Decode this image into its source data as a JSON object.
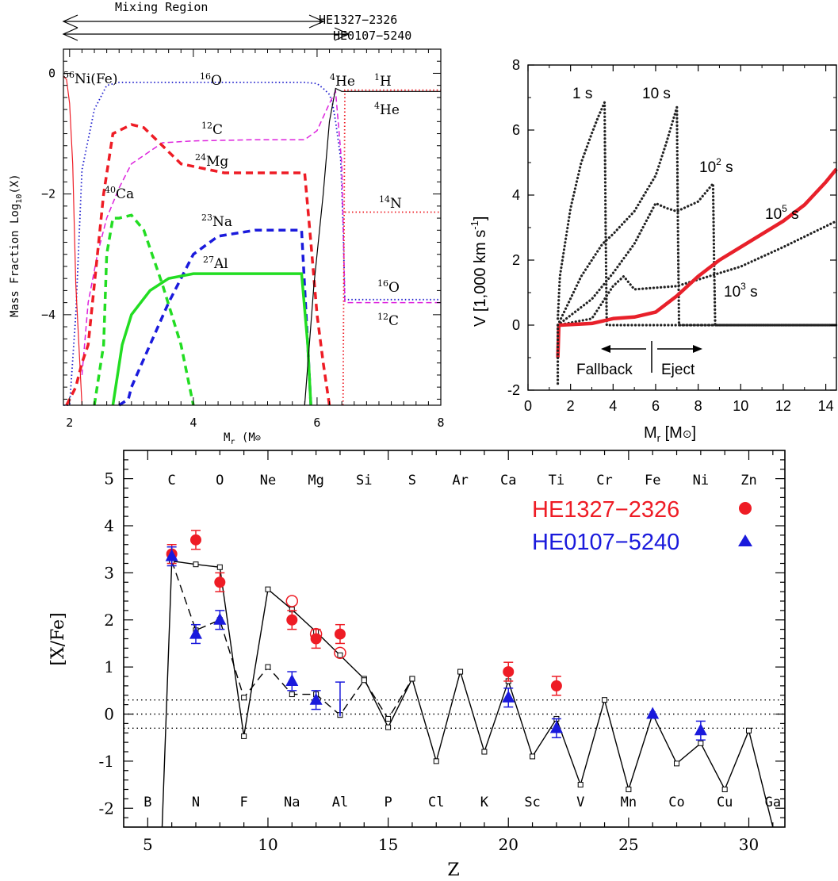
{
  "panel_a": {
    "mixing_label": "Mixing Region",
    "star1_label": "HE1327−2326",
    "star2_label": "HE0107−5240",
    "xlabel": "M",
    "xlabel_sub": "r",
    "xlabel_unit": " (M",
    "xlabel_unit_end": ")",
    "ylabel": "Mass Fraction Log",
    "ylabel_sub": "10",
    "ylabel_end": "(X)",
    "xticks": [
      "2",
      "4",
      "6",
      "8"
    ],
    "yticks": [
      "0",
      "−2",
      "−4"
    ],
    "species": [
      {
        "sup": "56",
        "name": "Ni(Fe)"
      },
      {
        "sup": "16",
        "name": "O"
      },
      {
        "sup": "4",
        "name": "He"
      },
      {
        "sup": "1",
        "name": "H"
      },
      {
        "sup": "4",
        "name": "He"
      },
      {
        "sup": "12",
        "name": "C"
      },
      {
        "sup": "24",
        "name": "Mg"
      },
      {
        "sup": "40",
        "name": "Ca"
      },
      {
        "sup": "14",
        "name": "N"
      },
      {
        "sup": "23",
        "name": "Na"
      },
      {
        "sup": "27",
        "name": "Al"
      },
      {
        "sup": "16",
        "name": "O"
      },
      {
        "sup": "12",
        "name": "C"
      }
    ]
  },
  "panel_b": {
    "ylabel": "V [1,000 km s",
    "ylabel_sup": "-1",
    "ylabel_end": "]",
    "xlabel": "M",
    "xlabel_sub": "r",
    "xlabel_end": " [M",
    "xlabel_close": "]",
    "xticks": [
      "0",
      "2",
      "4",
      "6",
      "8",
      "10",
      "12",
      "14"
    ],
    "yticks": [
      "-2",
      "0",
      "2",
      "4",
      "6",
      "8"
    ],
    "time_labels": {
      "t1": "1 s",
      "t10": "10 s",
      "t100_base": "10",
      "t100_sup": "2",
      "t100_unit": " s",
      "t1000_base": "10",
      "t1000_sup": "3",
      "t1000_unit": " s",
      "t1e5_base": "10",
      "t1e5_sup": "5",
      "t1e5_unit": " s"
    },
    "fallback_label": "Fallback",
    "eject_label": "Eject"
  },
  "panel_c": {
    "xlabel": "Z",
    "ylabel": "[X/Fe]",
    "legend": [
      {
        "name": "HE1327−2326",
        "color": "#ee1c25",
        "marker": "circle"
      },
      {
        "name": "HE0107−5240",
        "color": "#1a1adc",
        "marker": "triangle"
      }
    ]
  },
  "chart_data": [
    {
      "type": "line",
      "panel": "a",
      "xlabel": "Mr (M☉)",
      "ylabel": "Mass Fraction Log10(X)",
      "xlim": [
        1.9,
        8
      ],
      "ylim": [
        -5.5,
        0.4
      ],
      "series": [
        {
          "name": "16O",
          "color": "#1a1acc",
          "style": "dotted",
          "x": [
            1.9,
            2.0,
            2.1,
            2.2,
            2.4,
            2.6,
            2.8,
            3.0,
            4.0,
            5.0,
            5.8,
            6.0,
            6.1,
            6.2,
            6.25,
            6.3,
            6.38,
            6.42,
            6.45,
            8
          ],
          "y": [
            -5.5,
            -5.5,
            -4.0,
            -1.6,
            -0.6,
            -0.2,
            -0.15,
            -0.15,
            -0.15,
            -0.15,
            -0.15,
            -0.17,
            -0.25,
            -0.35,
            -0.5,
            -0.8,
            -1.4,
            -2.5,
            -3.75,
            -3.75
          ]
        },
        {
          "name": "12C",
          "color": "#dd22dd",
          "style": "dashed",
          "x": [
            2.2,
            2.3,
            2.45,
            2.6,
            2.8,
            3.0,
            3.5,
            4.0,
            5.0,
            5.8,
            6.0,
            6.2,
            6.3,
            6.4,
            6.45,
            8
          ],
          "y": [
            -5.0,
            -3.8,
            -3.0,
            -2.4,
            -1.9,
            -1.5,
            -1.15,
            -1.12,
            -1.1,
            -1.1,
            -0.95,
            -0.5,
            -0.3,
            -1.5,
            -3.8,
            -3.8
          ]
        },
        {
          "name": "24Mg",
          "color": "#ee1c25",
          "style": "dashed-thick",
          "x": [
            1.95,
            2.1,
            2.2,
            2.3,
            2.4,
            2.55,
            2.7,
            3.0,
            3.2,
            3.5,
            3.8,
            4.5,
            5.8,
            5.9,
            6.0,
            6.1,
            6.2
          ],
          "y": [
            -5.5,
            -5.2,
            -4.8,
            -4.5,
            -3.5,
            -2.0,
            -1.0,
            -0.85,
            -0.9,
            -1.2,
            -1.5,
            -1.65,
            -1.65,
            -2.8,
            -4.0,
            -4.8,
            -5.5
          ]
        },
        {
          "name": "23Na",
          "color": "#1a1adc",
          "style": "dashed-thick",
          "x": [
            2.8,
            2.95,
            3.0,
            3.3,
            3.6,
            4.0,
            4.4,
            5.0,
            5.75,
            5.85,
            5.9
          ],
          "y": [
            -5.5,
            -5.4,
            -5.2,
            -4.5,
            -3.8,
            -3.0,
            -2.7,
            -2.6,
            -2.6,
            -4.5,
            -5.5
          ]
        },
        {
          "name": "27Al",
          "color": "#22dd22",
          "style": "solid-thick",
          "x": [
            2.7,
            2.85,
            3.0,
            3.3,
            3.6,
            4.0,
            5.0,
            5.75,
            5.85,
            5.9
          ],
          "y": [
            -5.5,
            -4.5,
            -4.0,
            -3.6,
            -3.4,
            -3.32,
            -3.32,
            -3.32,
            -4.5,
            -5.5
          ]
        },
        {
          "name": "40Ca",
          "color": "#22dd22",
          "style": "dashed-thick",
          "x": [
            2.4,
            2.55,
            2.6,
            2.7,
            2.8,
            3.0,
            3.2,
            3.5,
            3.8,
            4.0
          ],
          "y": [
            -5.5,
            -4.5,
            -3.0,
            -2.4,
            -2.4,
            -2.35,
            -2.6,
            -3.5,
            -4.5,
            -5.5
          ]
        },
        {
          "name": "4He",
          "color": "#000000",
          "style": "solid",
          "x": [
            5.8,
            5.95,
            6.1,
            6.2,
            6.3,
            6.4,
            8
          ],
          "y": [
            -5.5,
            -3.5,
            -2.0,
            -0.8,
            -0.25,
            -0.3,
            -0.3
          ]
        },
        {
          "name": "1H",
          "color": "#ee1c25",
          "style": "dotted",
          "x": [
            6.42,
            6.45,
            8
          ],
          "y": [
            -5.5,
            -0.28,
            -0.28
          ]
        },
        {
          "name": "14N",
          "color": "#ee1c25",
          "style": "dotted",
          "x": [
            6.45,
            8
          ],
          "y": [
            -2.3,
            -2.3
          ]
        },
        {
          "name": "56Ni(Fe)",
          "color": "#ee1c25",
          "style": "solid",
          "x": [
            1.9,
            1.95,
            2.0,
            2.05,
            2.1,
            2.2
          ],
          "y": [
            -0.05,
            -0.1,
            -0.5,
            -1.5,
            -3.5,
            -5.5
          ]
        }
      ]
    },
    {
      "type": "line",
      "panel": "b",
      "xlabel": "Mr [M☉]",
      "ylabel": "V [1,000 km s-1]",
      "xlim": [
        0,
        14.5
      ],
      "ylim": [
        -2,
        8
      ],
      "series": [
        {
          "name": "1 s",
          "style": "dotted",
          "x": [
            1.4,
            1.5,
            2.0,
            2.5,
            3.0,
            3.3,
            3.6,
            3.65,
            3.7,
            5,
            14.5
          ],
          "y": [
            0.2,
            1.5,
            3.6,
            5.0,
            5.9,
            6.4,
            6.85,
            3.0,
            0.0,
            0.0,
            0.0
          ]
        },
        {
          "name": "10 s",
          "style": "dotted",
          "x": [
            1.4,
            2.5,
            3.5,
            4.0,
            5.0,
            6.0,
            6.5,
            7.0,
            7.05,
            7.1,
            14.5
          ],
          "y": [
            0.0,
            1.5,
            2.5,
            2.8,
            3.5,
            4.6,
            5.6,
            6.7,
            3.0,
            0.0,
            0.0
          ]
        },
        {
          "name": "100 s",
          "style": "dotted",
          "x": [
            1.4,
            3.0,
            4.0,
            5.0,
            6.0,
            6.5,
            7.0,
            8.0,
            8.7,
            8.75,
            8.8,
            14.5
          ],
          "y": [
            0.0,
            0.8,
            1.6,
            2.5,
            3.75,
            3.6,
            3.5,
            3.8,
            4.35,
            2.0,
            0.0,
            0.0
          ]
        },
        {
          "name": "1000 s",
          "style": "dotted",
          "x": [
            1.4,
            3.0,
            4.0,
            4.5,
            5.0,
            7.0,
            8.0,
            9.0,
            10.0,
            12.0,
            14.5
          ],
          "y": [
            0.0,
            0.2,
            1.2,
            1.5,
            1.1,
            1.2,
            1.4,
            1.6,
            1.8,
            2.4,
            3.2
          ]
        },
        {
          "name": "100000 s",
          "style": "solid-red",
          "x": [
            1.4,
            1.45,
            1.5,
            3.0,
            4.0,
            5.0,
            6.0,
            7.0,
            8.0,
            9.0,
            10.0,
            11.0,
            12.0,
            13.0,
            14.0,
            14.5
          ],
          "y": [
            -1.0,
            0.0,
            0.0,
            0.05,
            0.2,
            0.25,
            0.4,
            0.9,
            1.5,
            2.0,
            2.4,
            2.8,
            3.2,
            3.7,
            4.4,
            4.8
          ]
        }
      ]
    },
    {
      "type": "scatter",
      "panel": "c",
      "xlabel": "Z",
      "ylabel": "[X/Fe]",
      "xlim": [
        4,
        31.5
      ],
      "ylim": [
        -2.4,
        5.6
      ],
      "xticks": [
        5,
        10,
        15,
        20,
        25,
        30
      ],
      "yticks": [
        -2,
        -1,
        0,
        1,
        2,
        3,
        4,
        5
      ],
      "hlines": [
        0.3,
        0.0,
        -0.3
      ],
      "top_elements": [
        {
          "z": 6,
          "label": "C"
        },
        {
          "z": 8,
          "label": "O"
        },
        {
          "z": 10,
          "label": "Ne"
        },
        {
          "z": 12,
          "label": "Mg"
        },
        {
          "z": 14,
          "label": "Si"
        },
        {
          "z": 16,
          "label": "S"
        },
        {
          "z": 18,
          "label": "Ar"
        },
        {
          "z": 20,
          "label": "Ca"
        },
        {
          "z": 22,
          "label": "Ti"
        },
        {
          "z": 24,
          "label": "Cr"
        },
        {
          "z": 26,
          "label": "Fe"
        },
        {
          "z": 28,
          "label": "Ni"
        },
        {
          "z": 30,
          "label": "Zn"
        }
      ],
      "bottom_elements": [
        {
          "z": 5,
          "label": "B"
        },
        {
          "z": 7,
          "label": "N"
        },
        {
          "z": 9,
          "label": "F"
        },
        {
          "z": 11,
          "label": "Na"
        },
        {
          "z": 13,
          "label": "Al"
        },
        {
          "z": 15,
          "label": "P"
        },
        {
          "z": 17,
          "label": "Cl"
        },
        {
          "z": 19,
          "label": "K"
        },
        {
          "z": 21,
          "label": "Sc"
        },
        {
          "z": 23,
          "label": "V"
        },
        {
          "z": 25,
          "label": "Mn"
        },
        {
          "z": 27,
          "label": "Co"
        },
        {
          "z": 29,
          "label": "Cu"
        },
        {
          "z": 31,
          "label": "Ga"
        }
      ],
      "model_solid": {
        "x": [
          5.6,
          6,
          7,
          8,
          9,
          10,
          11,
          12,
          13,
          14,
          15,
          16,
          17,
          18,
          19,
          20,
          21,
          22,
          23,
          24,
          25,
          26,
          27,
          28,
          29,
          30,
          31
        ],
        "y": [
          -2.4,
          3.25,
          3.18,
          3.12,
          -0.47,
          2.65,
          2.22,
          1.75,
          1.25,
          0.75,
          -0.28,
          0.75,
          -1.0,
          0.9,
          -0.8,
          0.7,
          -0.9,
          -0.1,
          -1.5,
          0.3,
          -1.6,
          0.0,
          -1.05,
          -0.62,
          -1.6,
          -0.35,
          -2.4
        ]
      },
      "model_dashed": {
        "x": [
          6,
          7,
          8,
          9,
          10,
          11,
          12,
          13,
          14,
          15,
          16
        ],
        "y": [
          3.25,
          1.78,
          2.0,
          0.35,
          1.0,
          0.42,
          0.42,
          -0.02,
          0.72,
          -0.1,
          0.75
        ]
      },
      "HE1327_2326": {
        "x": [
          6,
          7,
          8,
          11,
          12,
          13,
          20,
          22
        ],
        "y": [
          3.4,
          3.7,
          2.8,
          2.0,
          1.6,
          1.7,
          0.9,
          0.6
        ],
        "err": [
          0.2,
          0.2,
          0.2,
          0.2,
          0.2,
          0.2,
          0.2,
          0.2
        ]
      },
      "HE1327_2326_open": {
        "x": [
          11,
          12,
          13
        ],
        "y": [
          2.4,
          1.7,
          1.3
        ]
      },
      "HE0107_5240": {
        "x": [
          6,
          7,
          8,
          11,
          12,
          13,
          20,
          22,
          26,
          28
        ],
        "y": [
          3.35,
          1.7,
          2.0,
          0.7,
          0.3,
          0.33,
          0.35,
          -0.3,
          0.0,
          -0.35
        ],
        "err": [
          0.2,
          0.2,
          0.2,
          0.2,
          0.2,
          0.35,
          0.2,
          0.2,
          0.0,
          0.2
        ],
        "upper_limit": [
          false,
          false,
          false,
          false,
          false,
          true,
          false,
          false,
          false,
          false
        ]
      }
    }
  ]
}
